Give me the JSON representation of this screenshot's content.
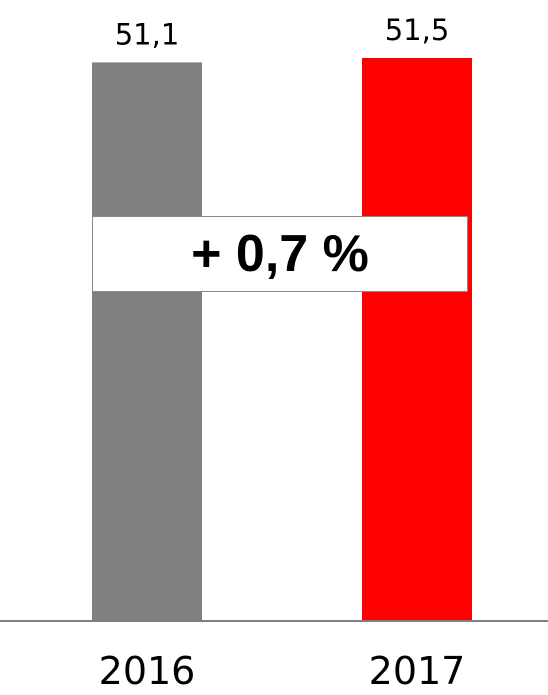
{
  "chart_data": {
    "type": "bar",
    "categories": [
      "2016",
      "2017"
    ],
    "values": [
      51.1,
      51.5
    ],
    "value_labels": [
      "51,1",
      "51,5"
    ],
    "colors": [
      "#808080",
      "#ff0000"
    ],
    "baseline_color": "#808080",
    "annotation": "+ 0,7 %",
    "ylim": [
      0,
      51.5
    ]
  }
}
